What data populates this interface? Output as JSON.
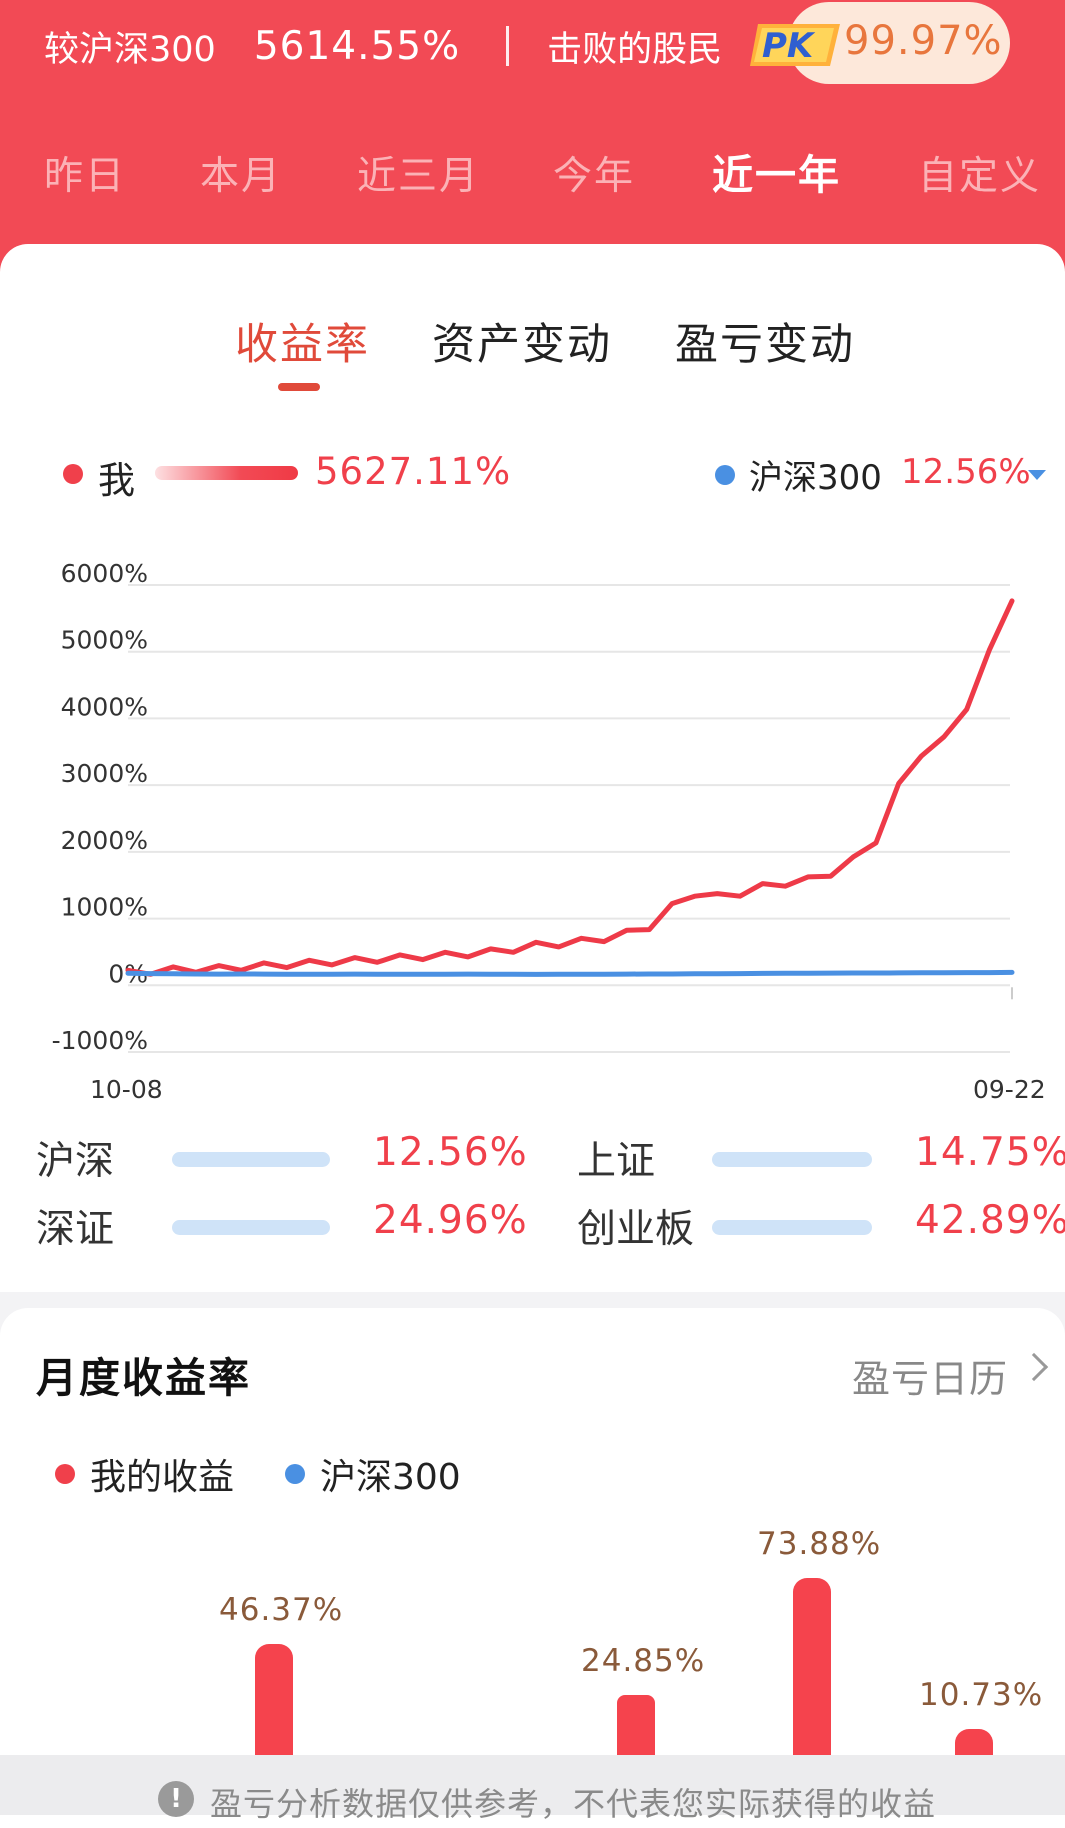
{
  "header": {
    "compare_label": "较沪深300",
    "compare_value": "5614.55%",
    "beat_label": "击败的股民",
    "pk_label": "PK",
    "beat_value": "99.97%"
  },
  "period_tabs": [
    "昨日",
    "本月",
    "近三月",
    "今年",
    "近一年",
    "自定义"
  ],
  "active_period": "近一年",
  "sub_tabs": [
    "收益率",
    "资产变动",
    "盈亏变动"
  ],
  "active_sub_tab": "收益率",
  "legend": {
    "me_label": "我",
    "me_value": "5627.11%",
    "index_label": "沪深300",
    "index_value": "12.56%"
  },
  "chart_data": {
    "type": "line",
    "x_start": "10-08",
    "x_end": "09-22",
    "y_ticks": [
      "6000%",
      "5000%",
      "4000%",
      "3000%",
      "2000%",
      "1000%",
      "0%",
      "-1000%"
    ],
    "ylim": [
      -1000,
      6000
    ],
    "series": [
      {
        "name": "我",
        "color": "#ee3a48",
        "values": [
          0,
          30,
          50,
          60,
          70,
          90,
          110,
          130,
          150,
          170,
          190,
          210,
          230,
          250,
          270,
          290,
          320,
          360,
          420,
          440,
          480,
          520,
          600,
          700,
          1000,
          1200,
          1150,
          1200,
          1300,
          1350,
          1400,
          1500,
          1700,
          2000,
          2800,
          3300,
          3500,
          4000,
          4800,
          5627
        ]
      },
      {
        "name": "沪深300",
        "color": "#4a90e2",
        "values": [
          0,
          -5,
          -8,
          -10,
          -12,
          -10,
          -12,
          -15,
          -14,
          -13,
          -12,
          -14,
          -15,
          -14,
          -13,
          -12,
          -14,
          -15,
          -16,
          -15,
          -14,
          -13,
          -12,
          -11,
          -10,
          -8,
          -6,
          -4,
          -2,
          0,
          2,
          3,
          4,
          5,
          6,
          8,
          9,
          10,
          11,
          12.56
        ]
      }
    ],
    "colors": {
      "me": "#ee3a48",
      "index": "#4a90e2"
    }
  },
  "indices": [
    {
      "name": "沪深",
      "value": "12.56%",
      "level": 0.13
    },
    {
      "name": "上证",
      "value": "14.75%",
      "level": 0.15
    },
    {
      "name": "深证",
      "value": "24.96%",
      "level": 0.25
    },
    {
      "name": "创业板",
      "value": "42.89%",
      "level": 0.43
    }
  ],
  "monthly": {
    "title": "月度收益率",
    "calendar_link": "盈亏日历",
    "legend_me": "我的收益",
    "legend_index": "沪深300",
    "bars": [
      {
        "label": "46.37%",
        "value": 46.37
      },
      {
        "label": "24.85%",
        "value": 24.85
      },
      {
        "label": "73.88%",
        "value": 73.88
      },
      {
        "label": "10.73%",
        "value": 10.73
      }
    ]
  },
  "footer": {
    "icon": "!",
    "notice": "盈亏分析数据仅供参考，不代表您实际获得的收益"
  }
}
